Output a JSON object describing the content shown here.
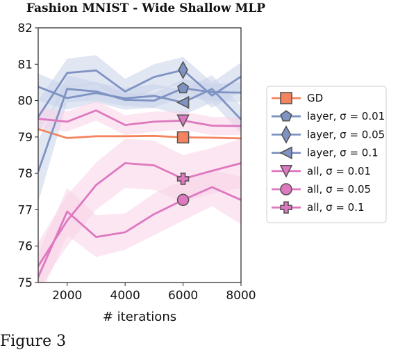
{
  "caption_fragment": "Figure 3",
  "chart_data": {
    "type": "line",
    "title": "Fashion MNIST - Wide Shallow MLP",
    "xlabel": "# iterations",
    "ylabel": "",
    "xlim": [
      1000,
      8000
    ],
    "ylim": [
      75,
      82
    ],
    "xticks": [
      2000,
      4000,
      6000,
      8000
    ],
    "yticks": [
      75,
      76,
      77,
      78,
      79,
      80,
      81,
      82
    ],
    "grid": false,
    "legend_position": "right",
    "colors": {
      "gd": "#f4845f",
      "layer": "#7f93c2",
      "layer_band": "#c9d1ea",
      "all": "#de78bf",
      "all_band": "#f7d2e8"
    },
    "x": [
      1000,
      2000,
      3000,
      4000,
      5000,
      6000,
      7000,
      8000
    ],
    "series": [
      {
        "name": "GD",
        "family": "gd",
        "marker": "square",
        "values": [
          79.22,
          78.97,
          79.02,
          79.02,
          79.03,
          78.99,
          78.98,
          78.96
        ],
        "lower": null,
        "upper": null
      },
      {
        "name": "layer, σ = 0.01",
        "family": "layer",
        "marker": "pentagon",
        "values": [
          78.05,
          80.32,
          80.25,
          80.02,
          80.0,
          80.34,
          80.23,
          80.22
        ],
        "lower": [
          77.2,
          79.95,
          80.0,
          79.85,
          79.8,
          80.1,
          80.0,
          79.95
        ],
        "upper": [
          78.9,
          80.7,
          80.5,
          80.2,
          80.2,
          80.6,
          80.45,
          80.5
        ]
      },
      {
        "name": "layer, σ = 0.05",
        "family": "layer",
        "marker": "diamond",
        "values": [
          79.55,
          80.76,
          80.83,
          80.25,
          80.65,
          80.84,
          80.14,
          80.66
        ],
        "lower": [
          79.1,
          80.35,
          80.45,
          79.95,
          80.3,
          80.45,
          79.8,
          80.25
        ],
        "upper": [
          80.0,
          81.15,
          81.25,
          80.6,
          81.0,
          81.2,
          80.5,
          81.05
        ]
      },
      {
        "name": "layer, σ = 0.1",
        "family": "layer",
        "marker": "triangle-left",
        "values": [
          80.38,
          80.07,
          80.21,
          80.06,
          80.13,
          79.95,
          80.32,
          79.48
        ],
        "lower": [
          80.0,
          79.75,
          79.95,
          79.75,
          79.8,
          79.6,
          79.95,
          79.1
        ],
        "upper": [
          80.75,
          80.4,
          80.5,
          80.35,
          80.45,
          80.3,
          80.7,
          79.85
        ]
      },
      {
        "name": "all, σ = 0.01",
        "family": "all",
        "marker": "triangle-down",
        "values": [
          79.5,
          79.42,
          79.73,
          79.33,
          79.42,
          79.45,
          79.31,
          79.3
        ],
        "lower": [
          79.25,
          79.15,
          79.45,
          79.05,
          79.15,
          79.2,
          79.05,
          79.05
        ],
        "upper": [
          79.8,
          79.7,
          80.0,
          79.6,
          79.7,
          79.7,
          79.55,
          79.55
        ]
      },
      {
        "name": "all, σ = 0.05",
        "family": "all",
        "marker": "circle",
        "values": [
          75.15,
          76.95,
          76.25,
          76.38,
          76.88,
          77.27,
          77.62,
          77.27
        ],
        "lower": [
          74.5,
          76.3,
          75.7,
          75.9,
          76.3,
          76.7,
          77.1,
          76.6
        ],
        "upper": [
          75.8,
          77.6,
          76.85,
          76.9,
          77.45,
          77.8,
          78.1,
          77.9
        ]
      },
      {
        "name": "all, σ = 0.1",
        "family": "all",
        "marker": "plus",
        "values": [
          75.45,
          76.7,
          77.68,
          78.28,
          78.22,
          77.85,
          78.07,
          78.28
        ],
        "lower": [
          74.8,
          76.0,
          77.0,
          77.6,
          77.55,
          77.2,
          77.45,
          77.6
        ],
        "upper": [
          76.1,
          77.4,
          78.3,
          78.95,
          78.9,
          78.5,
          78.7,
          78.95
        ]
      }
    ]
  }
}
